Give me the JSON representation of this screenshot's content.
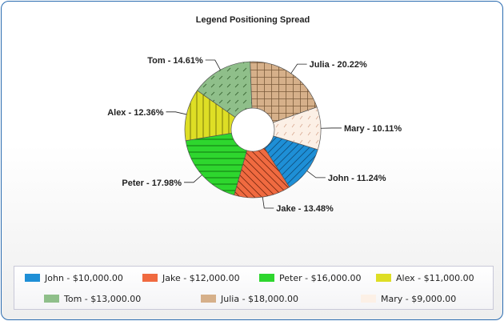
{
  "chart_data": {
    "type": "pie",
    "title": "Legend Positioning Spread",
    "categories": [
      "John",
      "Jake",
      "Peter",
      "Alex",
      "Tom",
      "Julia",
      "Mary"
    ],
    "values": [
      10000,
      12000,
      16000,
      11000,
      13000,
      18000,
      9000
    ],
    "percent_labels": [
      "John - 11.24%",
      "Jake - 13.48%",
      "Peter - 17.98%",
      "Alex - 12.36%",
      "Tom - 14.61%",
      "Julia - 20.22%",
      "Mary - 10.11%"
    ],
    "legend_labels": [
      "John - $10,000.00",
      "Jake - $12,000.00",
      "Peter - $16,000.00",
      "Alex - $11,000.00",
      "Tom - $13,000.00",
      "Julia - $18,000.00",
      "Mary - $9,000.00"
    ],
    "colors": [
      "#1e8fd6",
      "#f06a40",
      "#2ed62e",
      "#dede25",
      "#8fbf8a",
      "#d6b08a",
      "#fcf0e6"
    ],
    "hatch": [
      "backward-diagonal",
      "forward-diagonal",
      "horizontal",
      "vertical",
      "dashed-diagonal",
      "grid",
      "dashed-light"
    ],
    "donut": true,
    "legend_position": "bottom"
  }
}
